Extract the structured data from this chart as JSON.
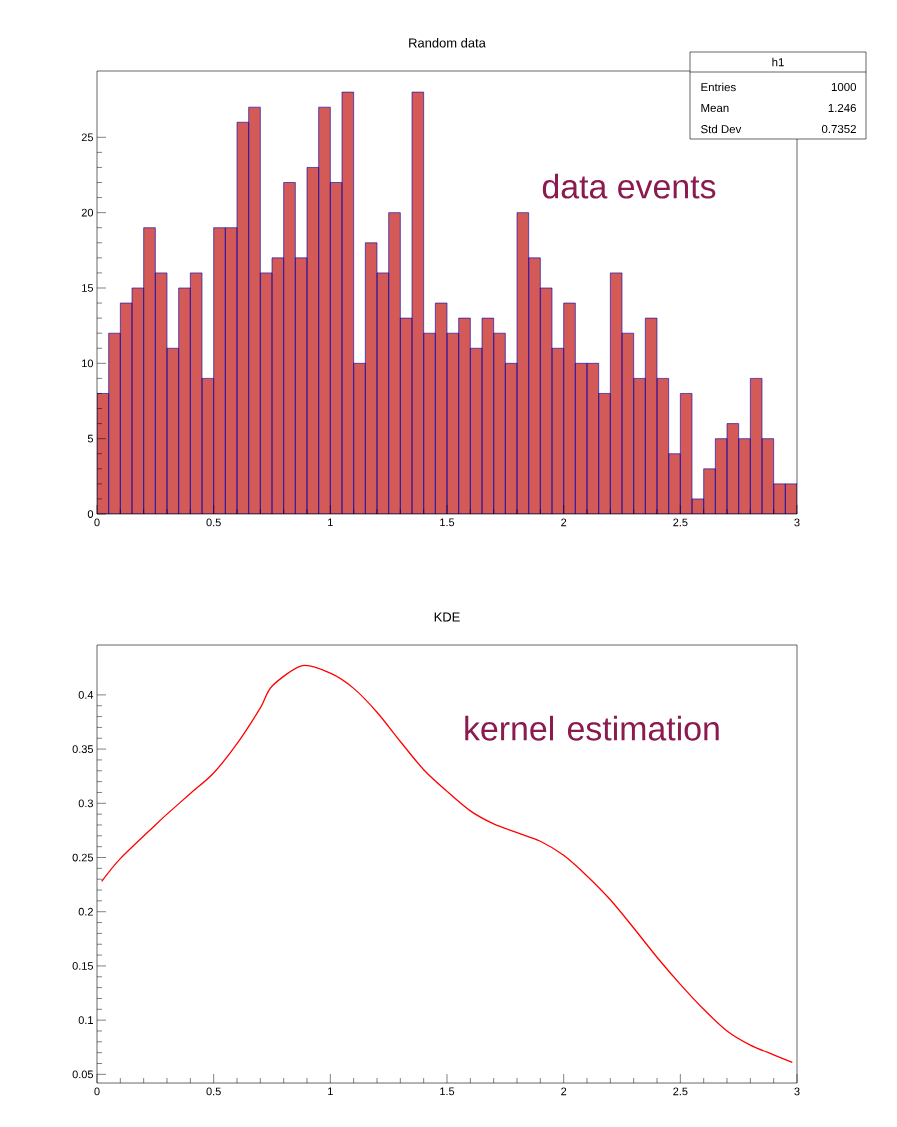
{
  "chart_data": [
    {
      "type": "histogram",
      "title": "Random data",
      "bins": [
        0,
        0.05,
        0.1,
        0.15,
        0.2,
        0.25,
        0.3,
        0.35,
        0.4,
        0.45,
        0.5,
        0.55,
        0.6,
        0.65,
        0.7,
        0.75,
        0.8,
        0.85,
        0.9,
        0.95,
        1,
        1.05,
        1.1,
        1.15,
        1.2,
        1.25,
        1.3,
        1.35,
        1.4,
        1.45,
        1.5,
        1.55,
        1.6,
        1.65,
        1.7,
        1.75,
        1.8,
        1.85,
        1.9,
        1.95,
        2,
        2.05,
        2.1,
        2.15,
        2.2,
        2.25,
        2.3,
        2.35,
        2.4,
        2.45,
        2.5,
        2.55,
        2.6,
        2.65,
        2.7,
        2.75,
        2.8,
        2.85,
        2.9,
        2.95,
        3
      ],
      "values": [
        8,
        12,
        14,
        15,
        19,
        16,
        11,
        15,
        16,
        9,
        19,
        19,
        26,
        27,
        16,
        17,
        22,
        17,
        23,
        27,
        22,
        28,
        10,
        18,
        16,
        20,
        13,
        28,
        12,
        14,
        12,
        13,
        11,
        13,
        12,
        10,
        20,
        17,
        15,
        11,
        14,
        10,
        10,
        8,
        16,
        12,
        9,
        13,
        9,
        4,
        8,
        1,
        3,
        5,
        6,
        5,
        9,
        5,
        2,
        2
      ],
      "color": "#d35a57",
      "xlim": [
        0,
        3
      ],
      "ylim": [
        0,
        29.4
      ],
      "xticks": [
        0,
        0.5,
        1,
        1.5,
        2,
        2.5,
        3
      ],
      "yticks": [
        0,
        5,
        10,
        15,
        20,
        25
      ],
      "annotations": [
        "h1",
        "Entries",
        "1000",
        "Mean",
        "1.246",
        "Std Dev",
        "0.7352",
        "data events"
      ]
    },
    {
      "type": "line",
      "title": "KDE",
      "x": [
        0.02,
        0.1,
        0.25,
        0.3,
        0.4,
        0.5,
        0.6,
        0.7,
        0.75,
        0.88,
        1.0,
        1.1,
        1.2,
        1.3,
        1.4,
        1.5,
        1.6,
        1.7,
        1.8,
        1.9,
        2.0,
        2.1,
        2.2,
        2.3,
        2.4,
        2.5,
        2.6,
        2.7,
        2.8,
        2.9,
        2.98
      ],
      "values": [
        0.228,
        0.249,
        0.28,
        0.29,
        0.309,
        0.328,
        0.355,
        0.388,
        0.408,
        0.427,
        0.42,
        0.406,
        0.384,
        0.357,
        0.331,
        0.311,
        0.293,
        0.281,
        0.273,
        0.265,
        0.252,
        0.233,
        0.211,
        0.185,
        0.158,
        0.133,
        0.11,
        0.09,
        0.077,
        0.068,
        0.061
      ],
      "color": "#ff0000",
      "xlim": [
        0,
        3
      ],
      "ylim": [
        0.042,
        0.446
      ],
      "xticks": [
        0,
        0.5,
        1,
        1.5,
        2,
        2.5,
        3
      ],
      "yticks": [
        0.05,
        0.1,
        0.15,
        0.2,
        0.25,
        0.3,
        0.35,
        0.4
      ],
      "annotations": [
        "kernel estimation"
      ]
    }
  ]
}
